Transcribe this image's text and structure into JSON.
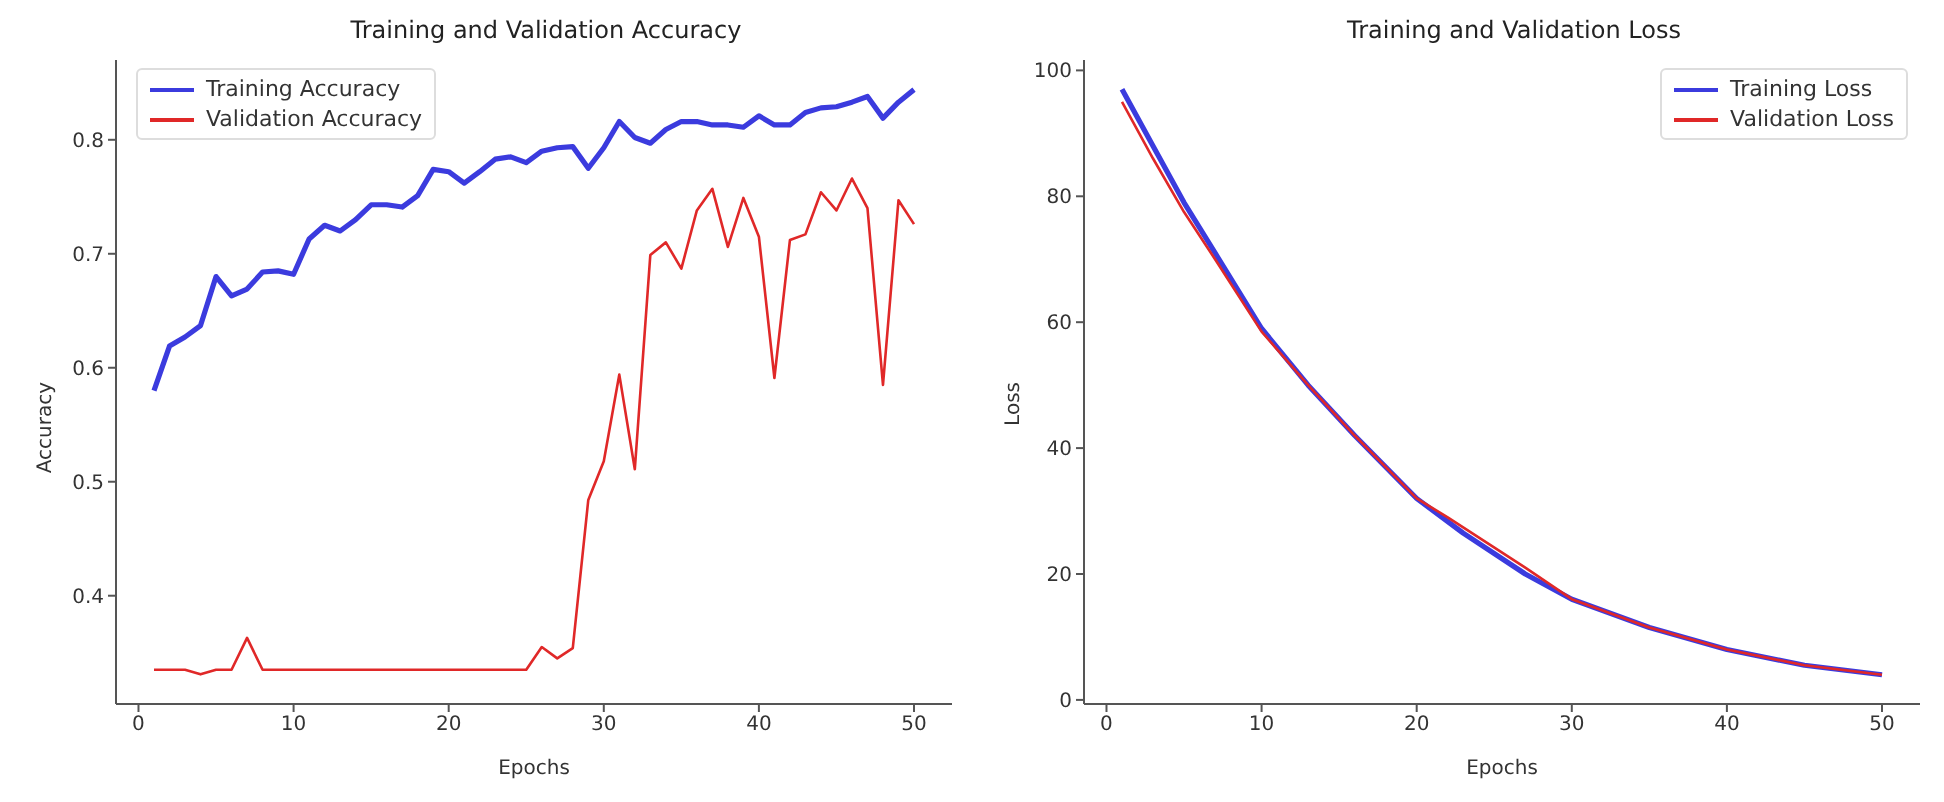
{
  "chart_data": [
    {
      "type": "line",
      "title": "Training and Validation Accuracy",
      "xlabel": "Epochs",
      "ylabel": "Accuracy",
      "xlim": [
        -1.45,
        52.45
      ],
      "xticks": [
        0,
        10,
        20,
        30,
        40,
        50
      ],
      "ylim": [
        0.305,
        0.87
      ],
      "yticks": [
        {
          "value": 0.4,
          "label": "0.4"
        },
        {
          "value": 0.5,
          "label": "0.5"
        },
        {
          "value": 0.6,
          "label": "0.6"
        },
        {
          "value": 0.7,
          "label": "0.7"
        },
        {
          "value": 0.8,
          "label": "0.8"
        }
      ],
      "x": [
        1,
        2,
        3,
        4,
        5,
        6,
        7,
        8,
        9,
        10,
        11,
        12,
        13,
        14,
        15,
        16,
        17,
        18,
        19,
        20,
        21,
        22,
        23,
        24,
        25,
        26,
        27,
        28,
        29,
        30,
        31,
        32,
        33,
        34,
        35,
        36,
        37,
        38,
        39,
        40,
        41,
        42,
        43,
        44,
        45,
        46,
        47,
        48,
        49,
        50
      ],
      "series": [
        {
          "name": "Training Accuracy",
          "color": "#3b3bde",
          "values": [
            0.58,
            0.619,
            0.627,
            0.637,
            0.68,
            0.663,
            0.669,
            0.684,
            0.685,
            0.682,
            0.713,
            0.725,
            0.72,
            0.73,
            0.743,
            0.743,
            0.741,
            0.751,
            0.774,
            0.772,
            0.762,
            0.772,
            0.783,
            0.785,
            0.78,
            0.79,
            0.793,
            0.794,
            0.775,
            0.793,
            0.816,
            0.802,
            0.797,
            0.809,
            0.816,
            0.816,
            0.813,
            0.813,
            0.811,
            0.821,
            0.813,
            0.813,
            0.824,
            0.828,
            0.829,
            0.833,
            0.838,
            0.819,
            0.833,
            0.844
          ]
        },
        {
          "name": "Validation Accuracy",
          "color": "#e02828",
          "values": [
            0.335,
            0.335,
            0.335,
            0.331,
            0.335,
            0.335,
            0.363,
            0.335,
            0.335,
            0.335,
            0.335,
            0.335,
            0.335,
            0.335,
            0.335,
            0.335,
            0.335,
            0.335,
            0.335,
            0.335,
            0.335,
            0.335,
            0.335,
            0.335,
            0.335,
            0.355,
            0.345,
            0.354,
            0.484,
            0.518,
            0.594,
            0.511,
            0.699,
            0.71,
            0.687,
            0.738,
            0.757,
            0.706,
            0.749,
            0.715,
            0.591,
            0.712,
            0.717,
            0.754,
            0.738,
            0.766,
            0.74,
            0.585,
            0.747,
            0.726
          ]
        }
      ],
      "grid": false,
      "legend": "top left",
      "marker": "none",
      "line_style": "solid"
    },
    {
      "type": "line",
      "title": "Training and Validation Loss",
      "xlabel": "Epochs",
      "ylabel": "Loss",
      "xlim": [
        -1.45,
        52.45
      ],
      "xticks": [
        0,
        10,
        20,
        30,
        40,
        50
      ],
      "ylim": [
        -0.65,
        101.65
      ],
      "yticks": [
        0,
        20,
        40,
        60,
        80,
        100
      ],
      "series": [
        {
          "name": "Training Loss",
          "color": "#3b3bde",
          "x": [
            1,
            3,
            5,
            7,
            10,
            13,
            16,
            20,
            23,
            27,
            30,
            35,
            40,
            45,
            50
          ],
          "values": [
            97,
            88,
            79,
            71,
            59,
            50,
            42,
            32,
            26.5,
            20,
            16,
            11.5,
            8,
            5.5,
            4
          ]
        },
        {
          "name": "Validation Loss",
          "color": "#e02828",
          "x": [
            1,
            3,
            5,
            7,
            10,
            13,
            16,
            20,
            22,
            27,
            30,
            35,
            40,
            45,
            50
          ],
          "values": [
            95,
            86,
            77.5,
            70,
            58.5,
            50,
            42,
            32,
            29,
            21,
            16,
            11.5,
            8,
            5.5,
            4
          ]
        }
      ],
      "grid": false,
      "legend": "top right",
      "marker": "none",
      "line_style": "solid"
    }
  ]
}
